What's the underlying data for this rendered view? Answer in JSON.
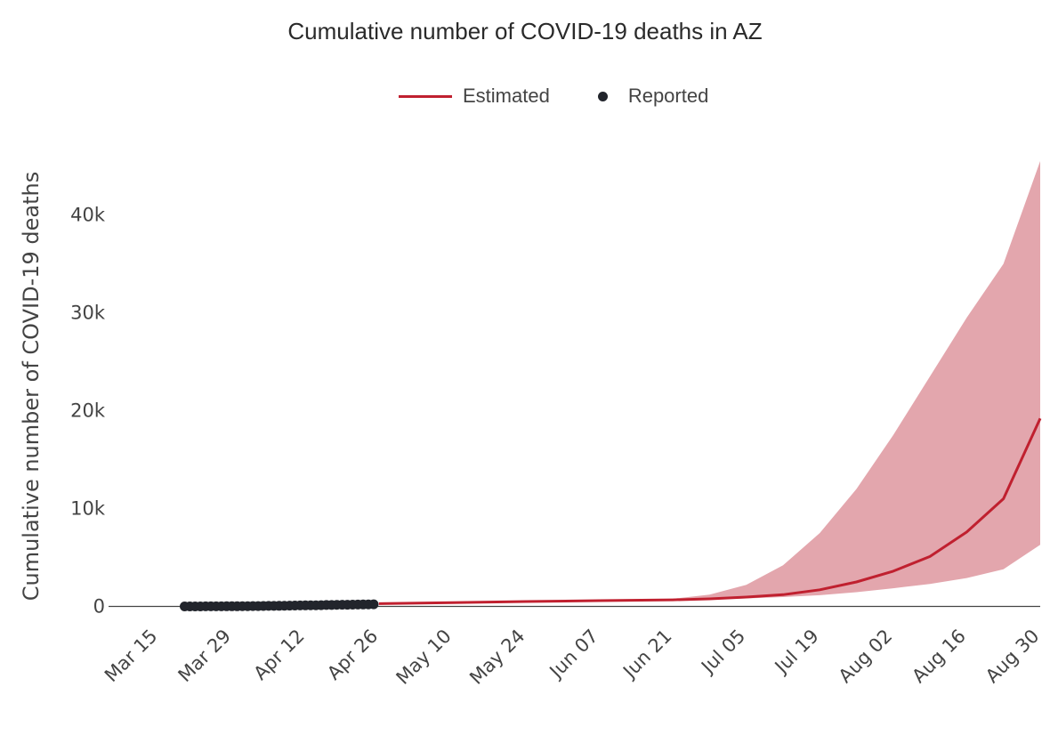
{
  "chart_data": {
    "type": "line",
    "title": "Cumulative number of COVID-19 deaths in AZ",
    "xlabel": "",
    "ylabel": "Cumulative number of COVID-19 deaths",
    "x_ticks": [
      "Mar 15",
      "Mar 29",
      "Apr 12",
      "Apr 26",
      "May 10",
      "May 24",
      "Jun 07",
      "Jun 21",
      "Jul 05",
      "Jul 19",
      "Aug 02",
      "Aug 16",
      "Aug 30"
    ],
    "y_ticks": [
      "0",
      "10k",
      "20k",
      "30k",
      "40k"
    ],
    "ylim": [
      -1500,
      46500
    ],
    "xlim": [
      "2020-03-15",
      "2020-08-30"
    ],
    "grid": false,
    "legend": {
      "placement": "top-center",
      "entries": [
        "Estimated",
        "Reported"
      ]
    },
    "colors": {
      "estimated": "#c0202f",
      "band": "#e3a6ad",
      "reported": "#22252c"
    },
    "series": [
      {
        "name": "Estimated",
        "kind": "line",
        "points": [
          [
            "2020-04-26",
            280
          ],
          [
            "2020-05-10",
            390
          ],
          [
            "2020-05-24",
            500
          ],
          [
            "2020-06-07",
            590
          ],
          [
            "2020-06-21",
            670
          ],
          [
            "2020-06-28",
            770
          ],
          [
            "2020-07-05",
            950
          ],
          [
            "2020-07-12",
            1200
          ],
          [
            "2020-07-19",
            1700
          ],
          [
            "2020-07-26",
            2500
          ],
          [
            "2020-08-02",
            3600
          ],
          [
            "2020-08-09",
            5100
          ],
          [
            "2020-08-16",
            7600
          ],
          [
            "2020-08-23",
            11000
          ],
          [
            "2020-08-30",
            19200
          ]
        ]
      },
      {
        "name": "Estimated",
        "kind": "band",
        "points": [
          [
            "2020-06-21",
            660,
            780
          ],
          [
            "2020-06-28",
            730,
            1200
          ],
          [
            "2020-07-05",
            820,
            2200
          ],
          [
            "2020-07-12",
            950,
            4200
          ],
          [
            "2020-07-19",
            1150,
            7500
          ],
          [
            "2020-07-26",
            1450,
            12000
          ],
          [
            "2020-08-02",
            1850,
            17500
          ],
          [
            "2020-08-09",
            2300,
            23500
          ],
          [
            "2020-08-16",
            2900,
            29500
          ],
          [
            "2020-08-23",
            3800,
            35000
          ],
          [
            "2020-08-30",
            6300,
            45500
          ]
        ]
      },
      {
        "name": "Reported",
        "kind": "scatter",
        "points": [
          [
            "2020-03-20",
            0
          ],
          [
            "2020-03-21",
            1
          ],
          [
            "2020-03-22",
            2
          ],
          [
            "2020-03-23",
            3
          ],
          [
            "2020-03-24",
            5
          ],
          [
            "2020-03-25",
            7
          ],
          [
            "2020-03-26",
            9
          ],
          [
            "2020-03-27",
            12
          ],
          [
            "2020-03-28",
            15
          ],
          [
            "2020-03-29",
            18
          ],
          [
            "2020-03-30",
            22
          ],
          [
            "2020-03-31",
            26
          ],
          [
            "2020-04-01",
            30
          ],
          [
            "2020-04-02",
            35
          ],
          [
            "2020-04-03",
            40
          ],
          [
            "2020-04-04",
            45
          ],
          [
            "2020-04-05",
            52
          ],
          [
            "2020-04-06",
            58
          ],
          [
            "2020-04-07",
            65
          ],
          [
            "2020-04-08",
            72
          ],
          [
            "2020-04-09",
            80
          ],
          [
            "2020-04-10",
            89
          ],
          [
            "2020-04-11",
            98
          ],
          [
            "2020-04-12",
            108
          ],
          [
            "2020-04-13",
            116
          ],
          [
            "2020-04-14",
            122
          ],
          [
            "2020-04-15",
            131
          ],
          [
            "2020-04-16",
            142
          ],
          [
            "2020-04-17",
            150
          ],
          [
            "2020-04-18",
            162
          ],
          [
            "2020-04-19",
            169
          ],
          [
            "2020-04-20",
            177
          ],
          [
            "2020-04-21",
            184
          ],
          [
            "2020-04-22",
            191
          ],
          [
            "2020-04-23",
            200
          ],
          [
            "2020-04-24",
            208
          ],
          [
            "2020-04-25",
            215
          ]
        ]
      }
    ]
  }
}
